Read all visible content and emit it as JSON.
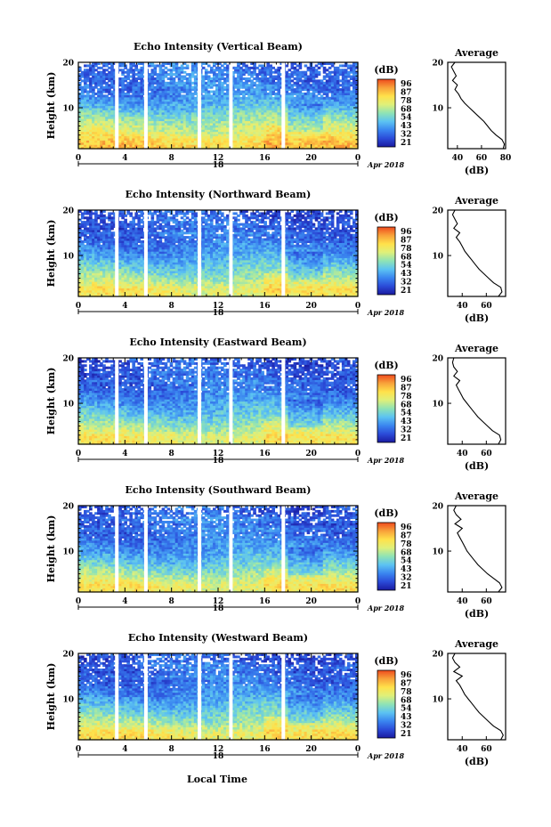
{
  "figure": {
    "xlabel": "Local Time",
    "ylabel": "Height (km)",
    "colorbar_unit": "(dB)",
    "colorbar_ticks": [
      "96",
      "87",
      "78",
      "68",
      "54",
      "43",
      "32",
      "21"
    ],
    "day_label": "18",
    "date_label": "Apr 2018",
    "profile_title": "Average",
    "profile_xlabel": "(dB)",
    "colors": {
      "colormap": [
        "#1a1aa0",
        "#2b4bd8",
        "#3a86f0",
        "#5cc3f2",
        "#8fe3b5",
        "#dff07a",
        "#ffe14a",
        "#f8a23a",
        "#ee4a1e"
      ],
      "gap": "#ffffff",
      "frame": "#000000"
    }
  },
  "chart_data": [
    {
      "type": "heatmap",
      "title": "Echo Intensity (Vertical Beam)",
      "xlabel": "Local Time",
      "ylabel": "Height (km)",
      "x_ticks": [
        "0",
        "4",
        "8",
        "12",
        "16",
        "20",
        "0"
      ],
      "xlim": [
        0,
        24
      ],
      "y_ticks": [
        "10",
        "20"
      ],
      "ylim": [
        1,
        20
      ],
      "colorbar": {
        "label": "(dB)",
        "min": 21,
        "max": 96
      },
      "data_gaps_hours": [
        3.3,
        5.8,
        10.4,
        13.1,
        17.6
      ],
      "profile": {
        "title": "Average",
        "xlabel": "(dB)",
        "x_ticks": [
          "40",
          "60",
          "80"
        ],
        "xlim": [
          32,
          80
        ],
        "y_ticks": [
          "10",
          "20"
        ],
        "ylim": [
          1,
          20
        ],
        "heights_km": [
          1,
          2,
          3,
          4,
          5,
          6,
          7,
          8,
          9,
          10,
          11,
          12,
          13,
          14,
          15,
          16,
          17,
          18,
          19,
          20
        ],
        "values_db": [
          78,
          79,
          77,
          72,
          68,
          65,
          62,
          58,
          54,
          50,
          46,
          43,
          41,
          38,
          40,
          36,
          39,
          37,
          35,
          38
        ]
      }
    },
    {
      "type": "heatmap",
      "title": "Echo Intensity (Northward Beam)",
      "xlabel": "Local Time",
      "ylabel": "Height (km)",
      "x_ticks": [
        "0",
        "4",
        "8",
        "12",
        "16",
        "20",
        "0"
      ],
      "xlim": [
        0,
        24
      ],
      "y_ticks": [
        "10",
        "20"
      ],
      "ylim": [
        1,
        20
      ],
      "colorbar": {
        "label": "(dB)",
        "min": 21,
        "max": 96
      },
      "data_gaps_hours": [
        3.3,
        5.8,
        10.4,
        13.1,
        17.6
      ],
      "profile": {
        "title": "Average",
        "xlabel": "(dB)",
        "x_ticks": [
          "40",
          "60"
        ],
        "xlim": [
          28,
          76
        ],
        "y_ticks": [
          "10",
          "20"
        ],
        "ylim": [
          1,
          20
        ],
        "heights_km": [
          1,
          2,
          3,
          4,
          5,
          6,
          7,
          8,
          9,
          10,
          11,
          12,
          13,
          14,
          15,
          16,
          17,
          18,
          19,
          20
        ],
        "values_db": [
          70,
          73,
          72,
          66,
          62,
          58,
          54,
          51,
          48,
          45,
          42,
          40,
          38,
          35,
          38,
          33,
          36,
          34,
          32,
          34
        ]
      }
    },
    {
      "type": "heatmap",
      "title": "Echo Intensity (Eastward Beam)",
      "xlabel": "Local Time",
      "ylabel": "Height (km)",
      "x_ticks": [
        "0",
        "4",
        "8",
        "12",
        "16",
        "20",
        "0"
      ],
      "xlim": [
        0,
        24
      ],
      "y_ticks": [
        "10",
        "20"
      ],
      "ylim": [
        1,
        20
      ],
      "colorbar": {
        "label": "(dB)",
        "min": 21,
        "max": 96
      },
      "data_gaps_hours": [
        3.3,
        5.8,
        10.4,
        13.1,
        17.6
      ],
      "profile": {
        "title": "Average",
        "xlabel": "(dB)",
        "x_ticks": [
          "40",
          "60"
        ],
        "xlim": [
          28,
          76
        ],
        "y_ticks": [
          "10",
          "20"
        ],
        "ylim": [
          1,
          20
        ],
        "heights_km": [
          1,
          2,
          3,
          4,
          5,
          6,
          7,
          8,
          9,
          10,
          11,
          12,
          13,
          14,
          15,
          16,
          17,
          18,
          19,
          20
        ],
        "values_db": [
          70,
          72,
          71,
          65,
          61,
          57,
          53,
          50,
          47,
          44,
          41,
          39,
          37,
          35,
          38,
          33,
          36,
          33,
          32,
          33
        ]
      }
    },
    {
      "type": "heatmap",
      "title": "Echo Intensity (Southward Beam)",
      "xlabel": "Local Time",
      "ylabel": "Height (km)",
      "x_ticks": [
        "0",
        "4",
        "8",
        "12",
        "16",
        "20",
        "0"
      ],
      "xlim": [
        0,
        24
      ],
      "y_ticks": [
        "10",
        "20"
      ],
      "ylim": [
        1,
        20
      ],
      "colorbar": {
        "label": "(dB)",
        "min": 21,
        "max": 96
      },
      "data_gaps_hours": [
        3.3,
        5.8,
        10.4,
        13.1,
        17.6
      ],
      "profile": {
        "title": "Average",
        "xlabel": "(dB)",
        "x_ticks": [
          "40",
          "60"
        ],
        "xlim": [
          28,
          76
        ],
        "y_ticks": [
          "10",
          "20"
        ],
        "ylim": [
          1,
          20
        ],
        "heights_km": [
          1,
          2,
          3,
          4,
          5,
          6,
          7,
          8,
          9,
          10,
          11,
          12,
          13,
          14,
          15,
          16,
          17,
          18,
          19,
          20
        ],
        "values_db": [
          70,
          73,
          71,
          66,
          61,
          57,
          53,
          50,
          47,
          44,
          42,
          40,
          38,
          36,
          40,
          34,
          39,
          35,
          33,
          35
        ]
      }
    },
    {
      "type": "heatmap",
      "title": "Echo Intensity (Westward Beam)",
      "xlabel": "Local Time",
      "ylabel": "Height (km)",
      "x_ticks": [
        "0",
        "4",
        "8",
        "12",
        "16",
        "20",
        "0"
      ],
      "xlim": [
        0,
        24
      ],
      "y_ticks": [
        "10",
        "20"
      ],
      "ylim": [
        1,
        20
      ],
      "colorbar": {
        "label": "(dB)",
        "min": 21,
        "max": 96
      },
      "data_gaps_hours": [
        3.3,
        5.8,
        10.4,
        13.1,
        17.6
      ],
      "profile": {
        "title": "Average",
        "xlabel": "(dB)",
        "x_ticks": [
          "40",
          "60"
        ],
        "xlim": [
          28,
          76
        ],
        "y_ticks": [
          "10",
          "20"
        ],
        "ylim": [
          1,
          20
        ],
        "heights_km": [
          1,
          2,
          3,
          4,
          5,
          6,
          7,
          8,
          9,
          10,
          11,
          12,
          13,
          14,
          15,
          16,
          17,
          18,
          19,
          20
        ],
        "values_db": [
          72,
          74,
          72,
          66,
          62,
          58,
          54,
          51,
          48,
          45,
          42,
          40,
          38,
          35,
          40,
          33,
          38,
          34,
          32,
          34
        ]
      }
    }
  ]
}
